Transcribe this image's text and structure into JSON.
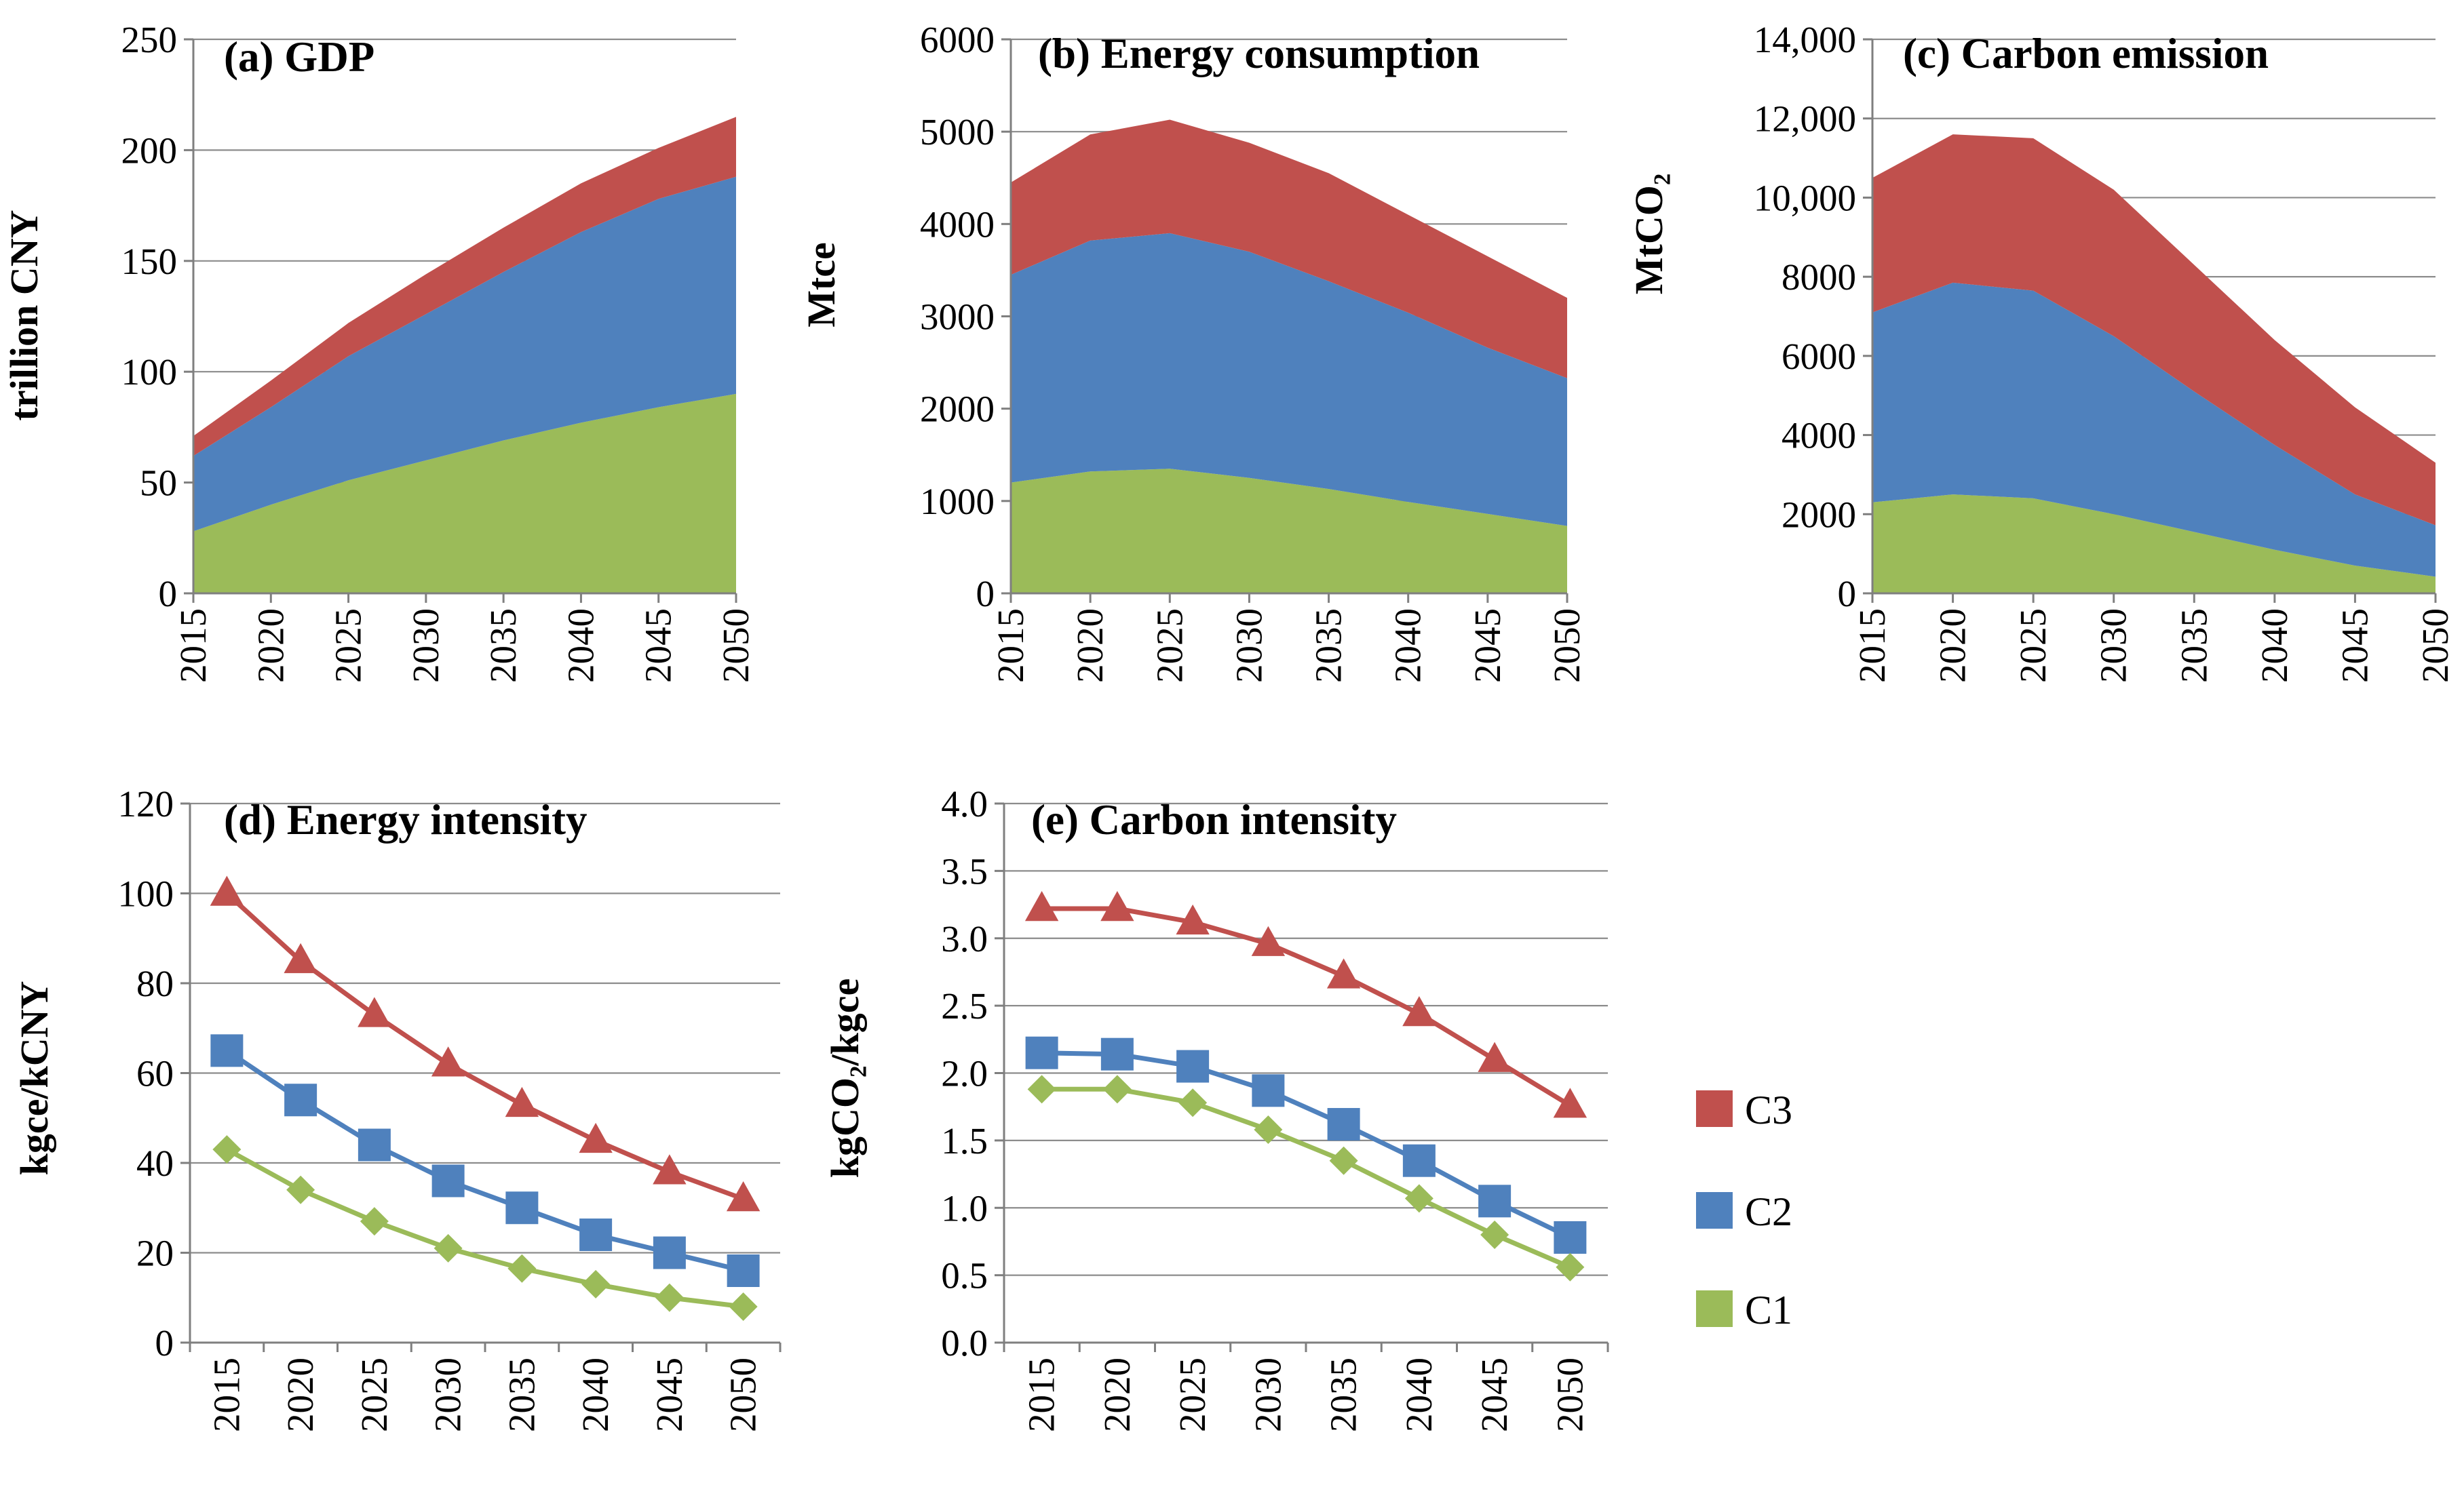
{
  "colors": {
    "C3": "#c0504d",
    "C2": "#4f81bd",
    "C1": "#9bbb59",
    "grid": "#8c8c8c",
    "axis": "#7f7f7f"
  },
  "legend": [
    {
      "key": "C3",
      "label": "C3",
      "marker": "triangle"
    },
    {
      "key": "C2",
      "label": "C2",
      "marker": "square"
    },
    {
      "key": "C1",
      "label": "C1",
      "marker": "diamond"
    }
  ],
  "chart_data": [
    {
      "id": "a",
      "type": "area",
      "stacked": true,
      "title": "(a) GDP",
      "ylabel": "trillion CNY",
      "x": [
        2015,
        2020,
        2025,
        2030,
        2035,
        2040,
        2045,
        2050
      ],
      "ylim": [
        0,
        250
      ],
      "yticks": [
        0,
        50,
        100,
        150,
        200,
        250
      ],
      "ytick_labels": [
        "0",
        "50",
        "100",
        "150",
        "200",
        "250"
      ],
      "series": [
        {
          "name": "C1",
          "values": [
            28,
            40,
            51,
            60,
            69,
            77,
            84,
            90
          ]
        },
        {
          "name": "C2",
          "values": [
            34,
            44,
            56,
            66,
            76,
            86,
            94,
            98
          ]
        },
        {
          "name": "C3",
          "values": [
            9,
            12,
            15,
            18,
            20,
            22,
            23,
            27
          ]
        }
      ]
    },
    {
      "id": "b",
      "type": "area",
      "stacked": true,
      "title": "(b) Energy consumption",
      "ylabel": "Mtce",
      "x": [
        2015,
        2020,
        2025,
        2030,
        2035,
        2040,
        2045,
        2050
      ],
      "ylim": [
        0,
        6000
      ],
      "yticks": [
        0,
        1000,
        2000,
        3000,
        4000,
        5000,
        6000
      ],
      "ytick_labels": [
        "0",
        "1000",
        "2000",
        "3000",
        "4000",
        "5000",
        "6000"
      ],
      "series": [
        {
          "name": "C1",
          "values": [
            1200,
            1320,
            1350,
            1250,
            1130,
            990,
            860,
            730
          ]
        },
        {
          "name": "C2",
          "values": [
            2250,
            2500,
            2550,
            2450,
            2250,
            2050,
            1800,
            1600
          ]
        },
        {
          "name": "C3",
          "values": [
            1000,
            1150,
            1230,
            1180,
            1170,
            1060,
            990,
            870
          ]
        }
      ]
    },
    {
      "id": "c",
      "type": "area",
      "stacked": true,
      "title": "(c) Carbon emission",
      "ylabel": "MtCO₂",
      "x": [
        2015,
        2020,
        2025,
        2030,
        2035,
        2040,
        2045,
        2050
      ],
      "ylim": [
        0,
        14000
      ],
      "yticks": [
        0,
        2000,
        4000,
        6000,
        8000,
        10000,
        12000,
        14000
      ],
      "ytick_labels": [
        "0",
        "2000",
        "4000",
        "6000",
        "8000",
        "10,000",
        "12,000",
        "14,000"
      ],
      "series": [
        {
          "name": "C1",
          "values": [
            2300,
            2500,
            2400,
            2000,
            1550,
            1100,
            700,
            420
          ]
        },
        {
          "name": "C2",
          "values": [
            4800,
            5350,
            5250,
            4500,
            3550,
            2650,
            1800,
            1300
          ]
        },
        {
          "name": "C3",
          "values": [
            3400,
            3750,
            3850,
            3700,
            3200,
            2650,
            2200,
            1580
          ]
        }
      ]
    },
    {
      "id": "d",
      "type": "line",
      "title": "(d) Energy intensity",
      "ylabel": "kgce/kCNY",
      "x": [
        2015,
        2020,
        2025,
        2030,
        2035,
        2040,
        2045,
        2050
      ],
      "ylim": [
        0,
        120
      ],
      "yticks": [
        0,
        20,
        40,
        60,
        80,
        100,
        120
      ],
      "ytick_labels": [
        "0",
        "20",
        "40",
        "60",
        "80",
        "100",
        "120"
      ],
      "series": [
        {
          "name": "C3",
          "values": [
            100,
            85,
            73,
            62,
            53,
            45,
            38,
            32
          ]
        },
        {
          "name": "C2",
          "values": [
            65,
            54,
            44,
            36,
            30,
            24,
            20,
            16
          ]
        },
        {
          "name": "C1",
          "values": [
            43,
            34,
            27,
            21,
            16.5,
            13,
            10,
            8
          ]
        }
      ]
    },
    {
      "id": "e",
      "type": "line",
      "title": "(e) Carbon intensity",
      "ylabel": "kgCO₂/kgce",
      "x": [
        2015,
        2020,
        2025,
        2030,
        2035,
        2040,
        2045,
        2050
      ],
      "ylim": [
        0,
        4.0
      ],
      "yticks": [
        0,
        0.5,
        1.0,
        1.5,
        2.0,
        2.5,
        3.0,
        3.5,
        4.0
      ],
      "ytick_labels": [
        "0.0",
        "0.5",
        "1.0",
        "1.5",
        "2.0",
        "2.5",
        "3.0",
        "3.5",
        "4.0"
      ],
      "series": [
        {
          "name": "C3",
          "values": [
            3.22,
            3.22,
            3.12,
            2.96,
            2.72,
            2.44,
            2.1,
            1.76
          ]
        },
        {
          "name": "C2",
          "values": [
            2.15,
            2.14,
            2.05,
            1.87,
            1.62,
            1.35,
            1.05,
            0.78
          ]
        },
        {
          "name": "C1",
          "values": [
            1.88,
            1.88,
            1.78,
            1.58,
            1.35,
            1.07,
            0.8,
            0.56
          ]
        }
      ]
    }
  ]
}
